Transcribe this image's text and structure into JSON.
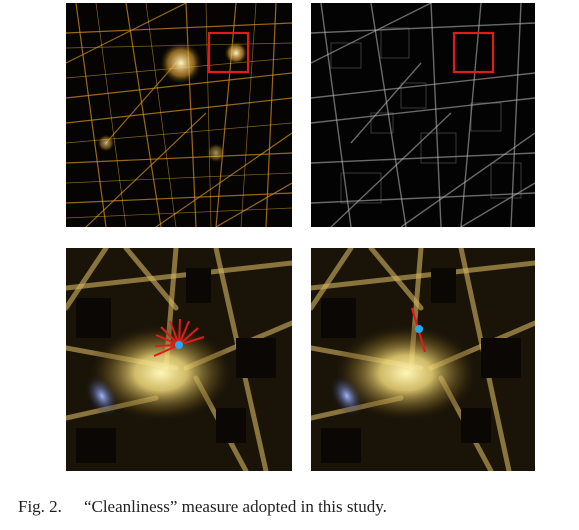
{
  "figure": {
    "label": "Fig. 2.",
    "caption": "“Cleanliness” measure adopted in this study."
  },
  "panels": [
    {
      "id": "night-lights-overview",
      "content": "night-time light satellite image of a city with red highlight box"
    },
    {
      "id": "edge-map-overview",
      "content": "grayscale edge/gradient map with red highlight box"
    },
    {
      "id": "zoom-radial-profiles",
      "content": "zoomed light image with fan of red radial lines around a blue point"
    },
    {
      "id": "zoom-best-profile",
      "content": "zoomed light image with a single red line through a blue point"
    }
  ],
  "colors": {
    "highlight_box": "#e11a1a",
    "profile_lines": "#e11a1a",
    "sample_point": "#28a8f0",
    "light_core": "#fff2a8",
    "light_glow": "#d79b2c"
  }
}
